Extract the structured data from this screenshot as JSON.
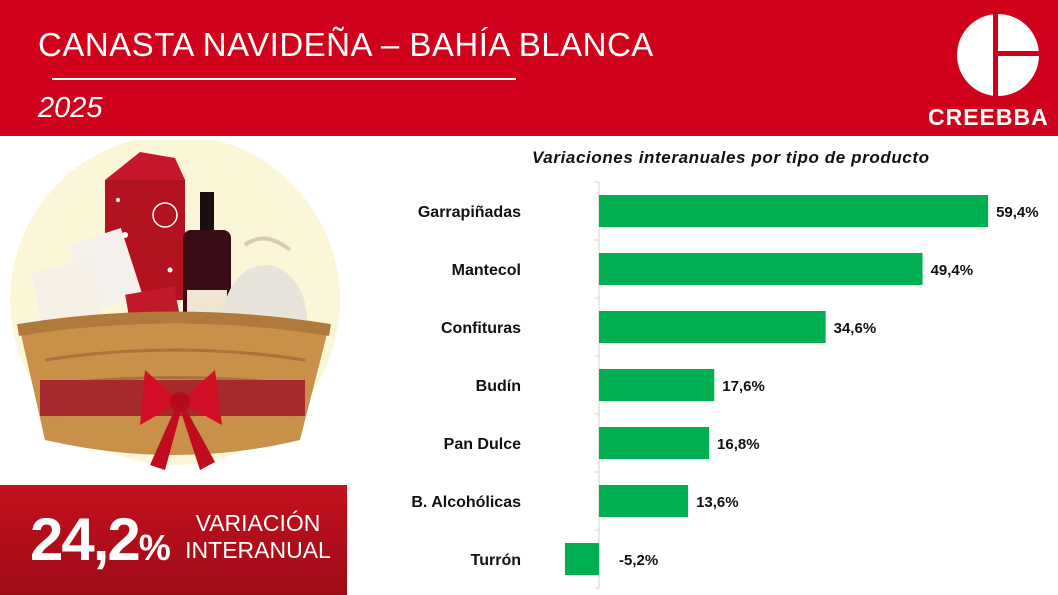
{
  "header": {
    "title": "CANASTA NAVIDEÑA – BAHÍA BLANCA",
    "year": "2025",
    "logo_text": "CREEBBA",
    "background_color": "#d0021b"
  },
  "stat": {
    "value": "24,2",
    "unit": "%",
    "label_line1": "VARIACIÓN",
    "label_line2": "INTERANUAL"
  },
  "chart_data": {
    "type": "bar",
    "orientation": "horizontal",
    "title": "Variaciones interanuales por tipo de producto",
    "categories": [
      "Garrapiñadas",
      "Mantecol",
      "Confituras",
      "Budín",
      "Pan Dulce",
      "B. Alcohólicas",
      "Turrón"
    ],
    "values": [
      59.4,
      49.4,
      34.6,
      17.6,
      16.8,
      13.6,
      -5.2
    ],
    "data_labels": [
      "59,4%",
      "49,4%",
      "34,6%",
      "17,6%",
      "16,8%",
      "13,6%",
      "-5,2%"
    ],
    "bar_color": "#00b050",
    "xlim": [
      -5.2,
      59.4
    ],
    "grid": false,
    "legend": "none"
  }
}
